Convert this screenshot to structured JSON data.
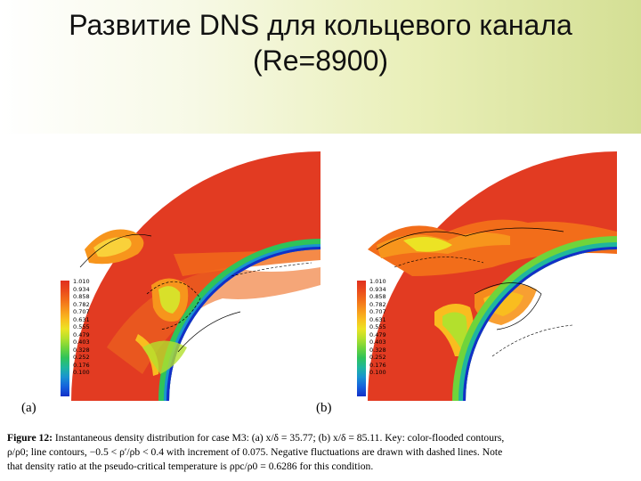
{
  "slide": {
    "title_line1": "Развитие DNS для кольцевого канала",
    "title_line2": "(Re=8900)"
  },
  "figure": {
    "panels": [
      {
        "letter": "(a)"
      },
      {
        "letter": "(b)"
      }
    ],
    "colorbar": {
      "labels": [
        "1.010",
        "0.934",
        "0.858",
        "0.782",
        "0.707",
        "0.631",
        "0.555",
        "0.479",
        "0.403",
        "0.328",
        "0.252",
        "0.176",
        "0.100"
      ],
      "colors": [
        "#e0301e",
        "#ea4a1c",
        "#f26d1a",
        "#f7951c",
        "#f9bd1f",
        "#ece324",
        "#b3e02d",
        "#6fd43b",
        "#2fc35a",
        "#1fb69d",
        "#1a93d0",
        "#1561dd",
        "#1230c8"
      ]
    },
    "caption": {
      "label": "Figure 12:",
      "line1": "Instantaneous density distribution for case M3: (a) x/δ = 35.77; (b) x/δ = 85.11. Key: color-flooded contours,",
      "line2": "ρ/ρ0; line contours, −0.5 < ρ′/ρb < 0.4 with increment of 0.075. Negative fluctuations are drawn with dashed lines. Note",
      "line3": "that density ratio at the pseudo-critical temperature is ρpc/ρ0 = 0.6286 for this condition."
    }
  }
}
